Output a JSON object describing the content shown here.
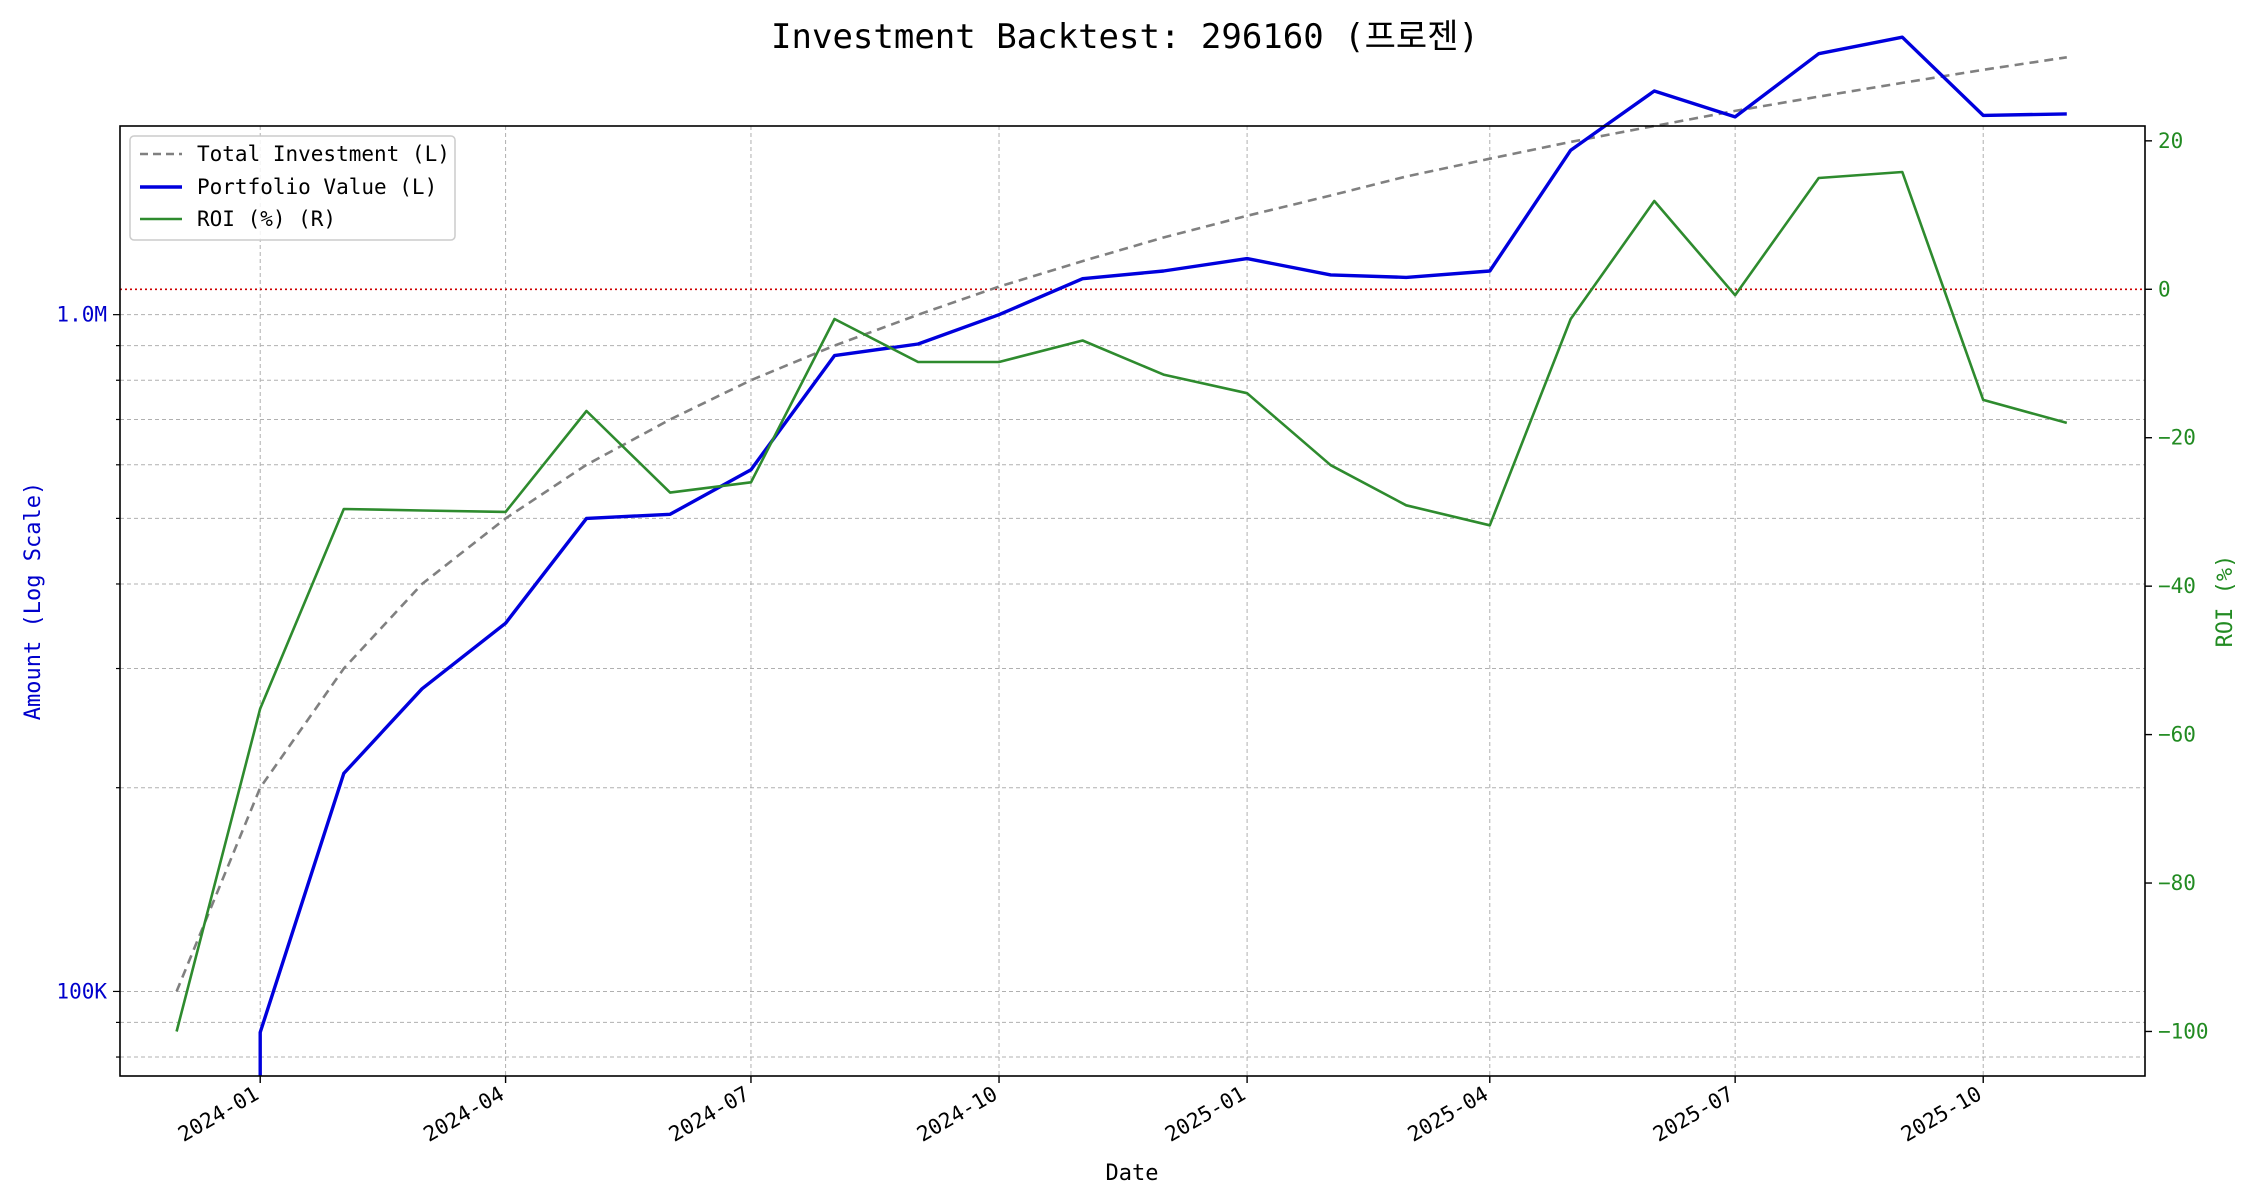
{
  "chart_data": {
    "type": "line",
    "title": "Investment Backtest: 296160 (프로젠)",
    "xlabel": "Date",
    "ylabel_left": "Amount (Log Scale)",
    "ylabel_right": "ROI (%)",
    "left_scale": "log",
    "left_ylim": [
      75000,
      1900000
    ],
    "right_ylim": [
      -106,
      22
    ],
    "xlim": [
      "2023-11-10",
      "2025-11-30"
    ],
    "x_ticks": [
      "2024-01",
      "2024-04",
      "2024-07",
      "2024-10",
      "2025-01",
      "2025-04",
      "2025-07",
      "2025-10"
    ],
    "left_ticks": [
      {
        "value": 100000,
        "label": "100K"
      },
      {
        "value": 1000000,
        "label": "1.0M"
      }
    ],
    "right_ticks": [
      20,
      0,
      -20,
      -40,
      -60,
      -80,
      -100
    ],
    "zero_line": {
      "value": 0,
      "color": "#cc0000",
      "style": "dotted"
    },
    "grid": true,
    "legend_position": "top-left",
    "legend": [
      "Total Investment (L)",
      "Portfolio Value (L)",
      "ROI (%) (R)"
    ],
    "dates": [
      "2023-12-01",
      "2024-01-01",
      "2024-02-01",
      "2024-03-01",
      "2024-04-01",
      "2024-05-01",
      "2024-06-01",
      "2024-07-01",
      "2024-08-01",
      "2024-09-01",
      "2024-10-01",
      "2024-11-01",
      "2024-12-01",
      "2025-01-01",
      "2025-02-01",
      "2025-03-01",
      "2025-04-01",
      "2025-05-01",
      "2025-06-01",
      "2025-07-01",
      "2025-08-01",
      "2025-09-01",
      "2025-10-01",
      "2025-11-01"
    ],
    "series": [
      {
        "name": "Total Investment (L)",
        "axis": "left",
        "color": "#808080",
        "dash": true,
        "values": [
          100000,
          200000,
          300000,
          400000,
          500000,
          600000,
          700000,
          800000,
          900000,
          1000000,
          1100000,
          1200000,
          1300000,
          1400000,
          1500000,
          1600000,
          1700000,
          1800000,
          1900000,
          2000000,
          2100000,
          2200000,
          2300000,
          2400000
        ]
      },
      {
        "name": "Portfolio Value (L)",
        "axis": "left",
        "color": "#0000dd",
        "dash": false,
        "values": [
          null,
          87000,
          210000,
          280000,
          350000,
          500000,
          507000,
          590000,
          870000,
          905000,
          1000000,
          1130000,
          1160000,
          1210000,
          1145000,
          1135000,
          1160000,
          1750000,
          2140000,
          1960000,
          2430000,
          2570000,
          1970000,
          1980000
        ]
      },
      {
        "name": "ROI (%) (R)",
        "axis": "right",
        "color": "#2e8b2e",
        "dash": false,
        "values": [
          -100,
          -56.5,
          -29.6,
          -29.8,
          -30.0,
          -16.4,
          -27.4,
          -26.0,
          -4.0,
          -9.8,
          -9.8,
          -6.9,
          -11.5,
          -14.0,
          -23.7,
          -29.1,
          -31.8,
          -4.0,
          11.9,
          -0.8,
          15.0,
          15.8,
          -14.9,
          -18.0
        ]
      }
    ]
  }
}
